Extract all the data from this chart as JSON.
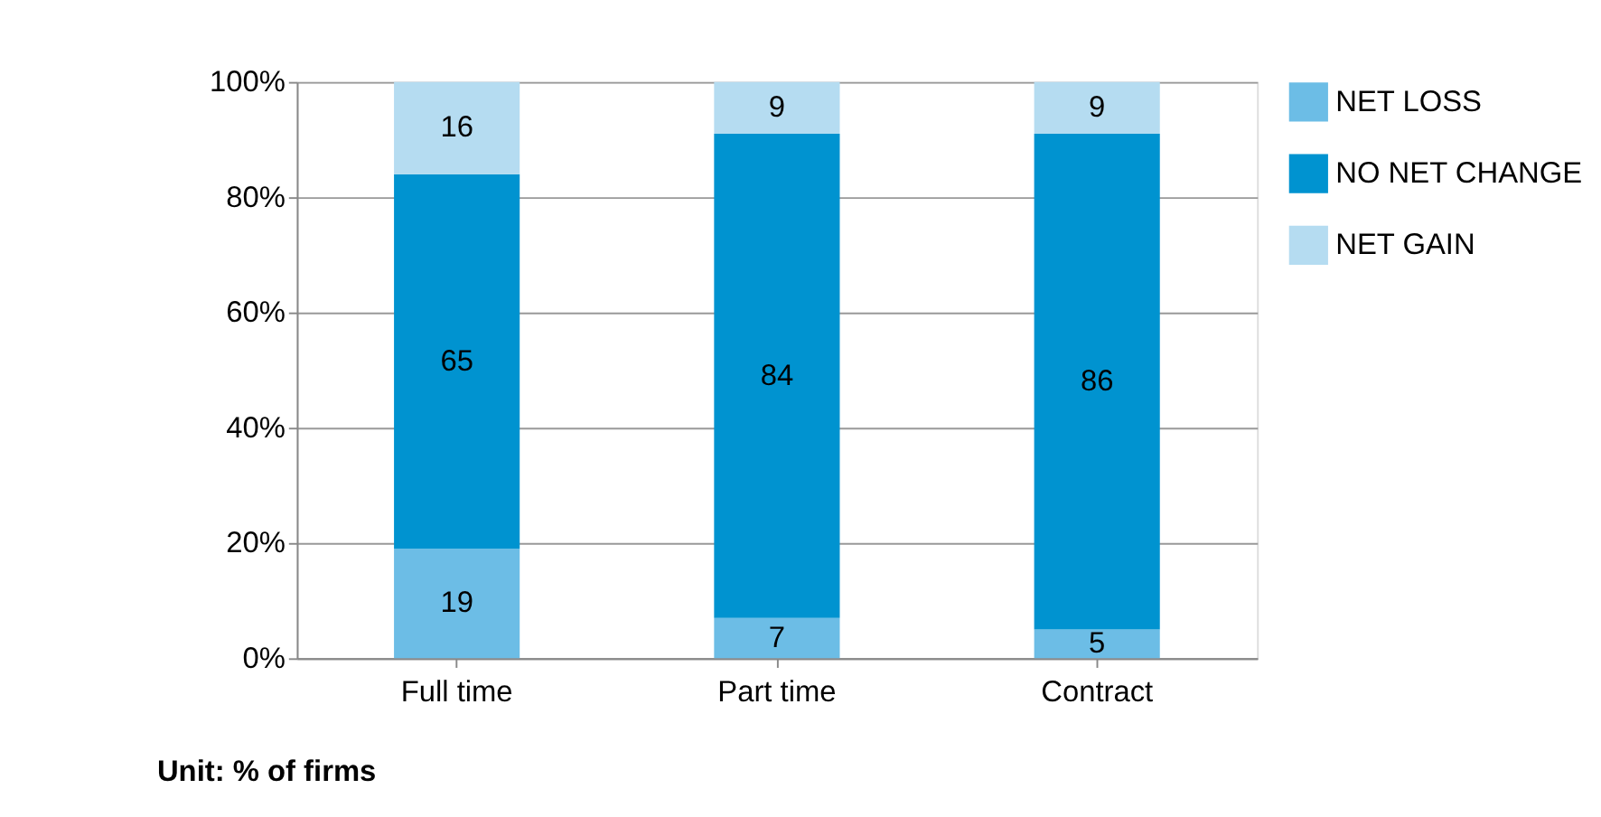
{
  "chart_data": {
    "type": "bar",
    "stacked": true,
    "categories": [
      "Full time",
      "Part time",
      "Contract"
    ],
    "series": [
      {
        "name": "NET LOSS",
        "color": "#6cbde6",
        "values": [
          19,
          7,
          5
        ]
      },
      {
        "name": "NO NET CHANGE",
        "color": "#0093d0",
        "values": [
          65,
          84,
          86
        ]
      },
      {
        "name": "NET GAIN",
        "color": "#b5dcf1",
        "values": [
          16,
          9,
          9
        ]
      }
    ],
    "ylim": [
      0,
      100
    ],
    "yticks": [
      {
        "value": 0,
        "label": "0%"
      },
      {
        "value": 20,
        "label": "20%"
      },
      {
        "value": 40,
        "label": "40%"
      },
      {
        "value": 60,
        "label": "60%"
      },
      {
        "value": 80,
        "label": "80%"
      },
      {
        "value": 100,
        "label": "100%"
      }
    ],
    "grid": "y",
    "legend": "right",
    "data_labels": true,
    "annotations": [
      "Unit: % of firms"
    ]
  }
}
